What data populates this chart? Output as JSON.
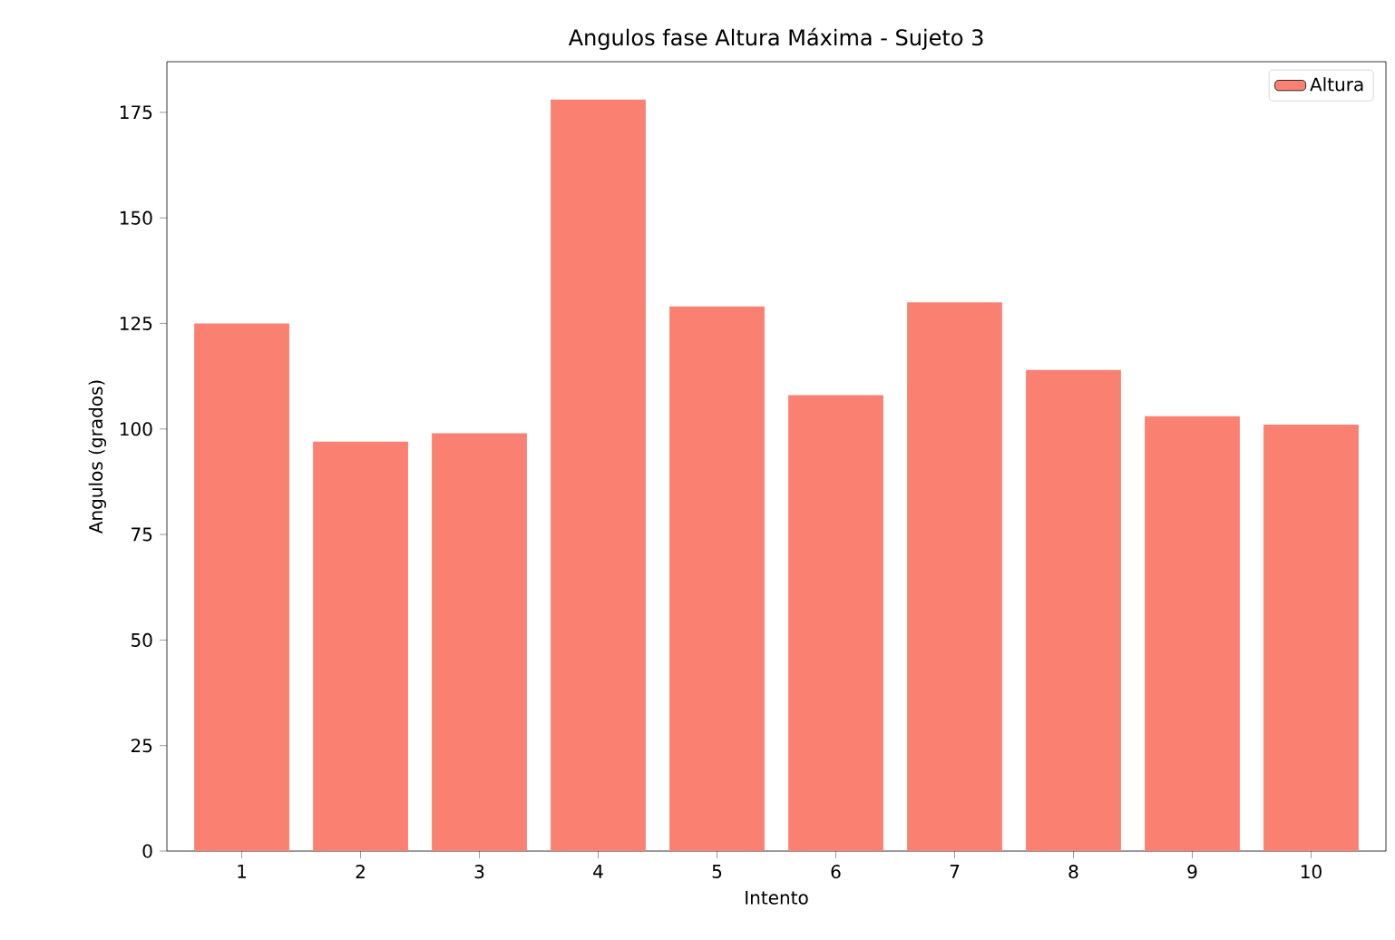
{
  "chart_data": {
    "type": "bar",
    "title": "Angulos fase Altura Máxima - Sujeto 3",
    "xlabel": "Intento",
    "ylabel": "Angulos (grados)",
    "categories": [
      "1",
      "2",
      "3",
      "4",
      "5",
      "6",
      "7",
      "8",
      "9",
      "10"
    ],
    "series": [
      {
        "name": "Altura",
        "color": "#fa8072",
        "values": [
          125,
          97,
          99,
          178,
          129,
          108,
          130,
          114,
          103,
          101
        ]
      }
    ],
    "ylim": [
      0,
      187
    ],
    "yticks": [
      0,
      25,
      50,
      75,
      100,
      125,
      150,
      175
    ],
    "legend": "top right"
  }
}
